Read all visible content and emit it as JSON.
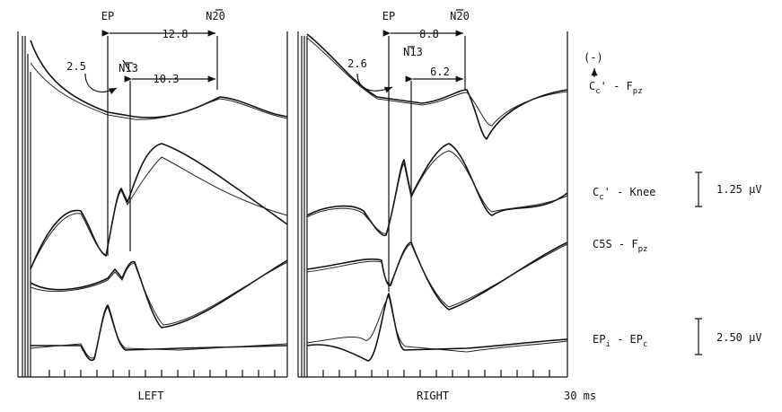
{
  "panels": [
    {
      "label": "LEFT",
      "ep": "EP",
      "n13": "N13",
      "n20": "N20",
      "ep_n20": "12.8",
      "ep_n13": "2.5",
      "n13_n20": "10.3"
    },
    {
      "label": "RIGHT",
      "ep": "EP",
      "n13": "N13",
      "n20": "N20",
      "ep_n20": "8.8",
      "ep_n13": "2.6",
      "n13_n20": "6.2"
    }
  ],
  "time_label": "30 ms",
  "polarity": "(-)",
  "traces": [
    [
      "C",
      "c",
      "' - F",
      "pz"
    ],
    [
      "C",
      "c",
      "' - Knee"
    ],
    [
      "C5S - F",
      "pz"
    ],
    [
      "EP",
      "i",
      " - EP",
      "c"
    ]
  ],
  "scales": [
    "1.25 µV",
    "2.50 µV"
  ]
}
